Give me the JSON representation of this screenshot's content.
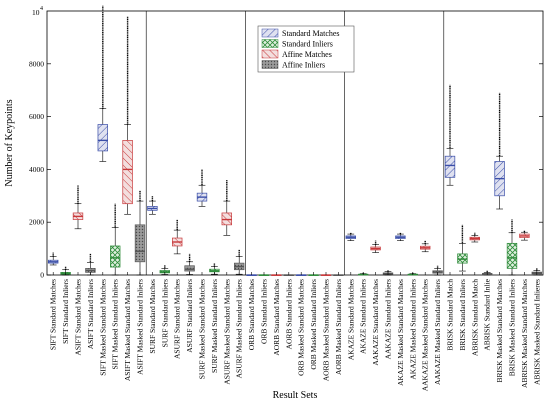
{
  "chart_data": {
    "type": "box",
    "title": "",
    "xlabel": "Result Sets",
    "ylabel": "Number of Keypoints",
    "exponent_label": "10",
    "exponent_power": "4",
    "ylim": [
      0,
      10000
    ],
    "yticks": [
      0,
      2000,
      4000,
      6000,
      8000
    ],
    "ytick_labels": [
      "0",
      "2000",
      "4000",
      "6000",
      "8000"
    ],
    "grid": false,
    "legend_position": "top-center",
    "legend": [
      {
        "label": "Standard Matches",
        "style": "standard-matches",
        "color": "#3a4ea8"
      },
      {
        "label": "Standard Inliers",
        "style": "standard-inliers",
        "color": "#2e8b3a"
      },
      {
        "label": "Affine Matches",
        "style": "affine-matches",
        "color": "#c8383a"
      },
      {
        "label": "Affine Inliers",
        "style": "affine-inliers",
        "color": "#555555"
      }
    ],
    "separators_after": [
      7,
      15,
      23,
      31
    ],
    "boxes": [
      {
        "label": "SIFT Standard Matches",
        "style": "standard-matches",
        "q1": 450,
        "median": 500,
        "q3": 560,
        "whisker_low": 380,
        "whisker_high": 700,
        "outlier_max": 850
      },
      {
        "label": "SIFT Standard Inliers",
        "style": "standard-inliers",
        "q1": 30,
        "median": 60,
        "q3": 100,
        "whisker_low": 0,
        "whisker_high": 200,
        "outlier_max": 320
      },
      {
        "label": "ASIFT Standard Matches",
        "style": "affine-matches",
        "q1": 2100,
        "median": 2220,
        "q3": 2350,
        "whisker_low": 1750,
        "whisker_high": 2700,
        "outlier_max": 3400
      },
      {
        "label": "ASIFT Standard Inliers",
        "style": "affine-inliers",
        "q1": 100,
        "median": 170,
        "q3": 250,
        "whisker_low": 0,
        "whisker_high": 480,
        "outlier_max": 820
      },
      {
        "label": "SIFT Masked Standard Matches",
        "style": "standard-matches",
        "q1": 4700,
        "median": 5100,
        "q3": 5700,
        "whisker_low": 4300,
        "whisker_high": 6300,
        "outlier_max": 10200
      },
      {
        "label": "SIFT Masked Standard Inliers",
        "style": "standard-inliers",
        "q1": 300,
        "median": 650,
        "q3": 1100,
        "whisker_low": 0,
        "whisker_high": 1800,
        "outlier_max": 2700
      },
      {
        "label": "ASIFT Masked Standard Matches",
        "style": "affine-matches",
        "q1": 2700,
        "median": 4000,
        "q3": 5100,
        "whisker_low": 2300,
        "whisker_high": 5700,
        "outlier_max": 9800
      },
      {
        "label": "ASIFT Masked Standard Inliers",
        "style": "affine-inliers",
        "q1": 500,
        "median": 900,
        "q3": 1900,
        "whisker_low": 0,
        "whisker_high": 2800,
        "outlier_max": 3200
      },
      {
        "label": "SURF Standard Matches",
        "style": "standard-matches",
        "q1": 2450,
        "median": 2520,
        "q3": 2600,
        "whisker_low": 2300,
        "whisker_high": 2800,
        "outlier_max": 3000
      },
      {
        "label": "SURF Standard Inliers",
        "style": "standard-inliers",
        "q1": 80,
        "median": 120,
        "q3": 170,
        "whisker_low": 20,
        "whisker_high": 250,
        "outlier_max": 380
      },
      {
        "label": "ASURF Standard Matches",
        "style": "affine-matches",
        "q1": 1100,
        "median": 1250,
        "q3": 1400,
        "whisker_low": 800,
        "whisker_high": 1700,
        "outlier_max": 2100
      },
      {
        "label": "ASURF Standard Inliers",
        "style": "affine-inliers",
        "q1": 150,
        "median": 220,
        "q3": 350,
        "whisker_low": 20,
        "whisker_high": 500,
        "outlier_max": 800
      },
      {
        "label": "SURF Masked Standard Matches",
        "style": "standard-matches",
        "q1": 2800,
        "median": 2950,
        "q3": 3100,
        "whisker_low": 2600,
        "whisker_high": 3400,
        "outlier_max": 4000
      },
      {
        "label": "SURF Masked Standard Inliers",
        "style": "standard-inliers",
        "q1": 120,
        "median": 160,
        "q3": 220,
        "whisker_low": 30,
        "whisker_high": 320,
        "outlier_max": 450
      },
      {
        "label": "ASURF Masked Standard Matches",
        "style": "affine-matches",
        "q1": 1900,
        "median": 2100,
        "q3": 2350,
        "whisker_low": 1500,
        "whisker_high": 2800,
        "outlier_max": 3600
      },
      {
        "label": "ASURF Masked Standard Inliers",
        "style": "affine-inliers",
        "q1": 200,
        "median": 320,
        "q3": 450,
        "whisker_low": 30,
        "whisker_high": 700,
        "outlier_max": 950
      },
      {
        "label": "ORB Standard Matches",
        "style": "standard-matches",
        "q1": 0,
        "median": 0,
        "q3": 0,
        "whisker_low": 0,
        "whisker_high": 0,
        "outlier_max": 0
      },
      {
        "label": "ORB Standard Inliers",
        "style": "standard-inliers",
        "q1": 0,
        "median": 0,
        "q3": 0,
        "whisker_low": 0,
        "whisker_high": 0,
        "outlier_max": 0
      },
      {
        "label": "AORB Standard Matches",
        "style": "affine-matches",
        "q1": 0,
        "median": 0,
        "q3": 0,
        "whisker_low": 0,
        "whisker_high": 0,
        "outlier_max": 0
      },
      {
        "label": "AORB Standard Inliers",
        "style": "affine-inliers",
        "q1": 0,
        "median": 0,
        "q3": 0,
        "whisker_low": 0,
        "whisker_high": 0,
        "outlier_max": 0
      },
      {
        "label": "ORB Masked Standard Matches",
        "style": "standard-matches",
        "q1": 0,
        "median": 0,
        "q3": 0,
        "whisker_low": 0,
        "whisker_high": 0,
        "outlier_max": 0
      },
      {
        "label": "ORB Masked Standard Inliers",
        "style": "standard-inliers",
        "q1": 0,
        "median": 0,
        "q3": 0,
        "whisker_low": 0,
        "whisker_high": 0,
        "outlier_max": 0
      },
      {
        "label": "AORB Masked Standard Matches",
        "style": "affine-matches",
        "q1": 0,
        "median": 0,
        "q3": 0,
        "whisker_low": 0,
        "whisker_high": 0,
        "outlier_max": 0
      },
      {
        "label": "AORB Masked Standard Inliers",
        "style": "affine-inliers",
        "q1": 0,
        "median": 0,
        "q3": 0,
        "whisker_low": 0,
        "whisker_high": 0,
        "outlier_max": 0
      },
      {
        "label": "AKAZE Standard Matches",
        "style": "standard-matches",
        "q1": 1380,
        "median": 1430,
        "q3": 1480,
        "whisker_low": 1300,
        "whisker_high": 1550,
        "outlier_max": 1600
      },
      {
        "label": "AKAZE Standard Inliers",
        "style": "standard-inliers",
        "q1": 5,
        "median": 15,
        "q3": 30,
        "whisker_low": 0,
        "whisker_high": 50,
        "outlier_max": 80
      },
      {
        "label": "AAKAZE Standard Matches",
        "style": "affine-matches",
        "q1": 950,
        "median": 1000,
        "q3": 1060,
        "whisker_low": 850,
        "whisker_high": 1150,
        "outlier_max": 1300
      },
      {
        "label": "AAKAZE Standard Inliers",
        "style": "affine-inliers",
        "q1": 30,
        "median": 50,
        "q3": 80,
        "whisker_low": 0,
        "whisker_high": 130,
        "outlier_max": 200
      },
      {
        "label": "AKAZE Masked Standard Matches",
        "style": "standard-matches",
        "q1": 1380,
        "median": 1430,
        "q3": 1480,
        "whisker_low": 1300,
        "whisker_high": 1550,
        "outlier_max": 1600
      },
      {
        "label": "AKAZE Masked Standard Inliers",
        "style": "standard-inliers",
        "q1": 5,
        "median": 15,
        "q3": 30,
        "whisker_low": 0,
        "whisker_high": 50,
        "outlier_max": 80
      },
      {
        "label": "AAKAZE Masked Standard Matches",
        "style": "affine-matches",
        "q1": 980,
        "median": 1030,
        "q3": 1090,
        "whisker_low": 880,
        "whisker_high": 1180,
        "outlier_max": 1300
      },
      {
        "label": "AAKAZE Masked Standard Inliers",
        "style": "affine-inliers",
        "q1": 70,
        "median": 110,
        "q3": 160,
        "whisker_low": 0,
        "whisker_high": 250,
        "outlier_max": 350
      },
      {
        "label": "BRISK Standard Match",
        "style": "standard-matches",
        "q1": 3700,
        "median": 4150,
        "q3": 4500,
        "whisker_low": 3400,
        "whisker_high": 4800,
        "outlier_max": 7200
      },
      {
        "label": "BRISK Standard Inliers",
        "style": "standard-inliers",
        "q1": 450,
        "median": 600,
        "q3": 800,
        "whisker_low": 150,
        "whisker_high": 1200,
        "outlier_max": 1900
      },
      {
        "label": "ABRISK Standard Match",
        "style": "affine-matches",
        "q1": 1330,
        "median": 1380,
        "q3": 1430,
        "whisker_low": 1250,
        "whisker_high": 1500,
        "outlier_max": 1600
      },
      {
        "label": "ABRISK Standard Inlie",
        "style": "affine-inliers",
        "q1": 10,
        "median": 30,
        "q3": 60,
        "whisker_low": 0,
        "whisker_high": 100,
        "outlier_max": 180
      },
      {
        "label": "BRISK Masked Standard Matches",
        "style": "standard-matches",
        "q1": 3000,
        "median": 3650,
        "q3": 4300,
        "whisker_low": 2500,
        "whisker_high": 4500,
        "outlier_max": 6900
      },
      {
        "label": "BRISK Masked Standard Inliers",
        "style": "standard-inliers",
        "q1": 250,
        "median": 650,
        "q3": 1200,
        "whisker_low": 0,
        "whisker_high": 1600,
        "outlier_max": 2100
      },
      {
        "label": "ABRISK Masked Standard Matches",
        "style": "affine-matches",
        "q1": 1420,
        "median": 1480,
        "q3": 1550,
        "whisker_low": 1320,
        "whisker_high": 1620,
        "outlier_max": 1700
      },
      {
        "label": "ABRISK Masked Standard Inlieres",
        "style": "affine-inliers",
        "q1": 40,
        "median": 70,
        "q3": 110,
        "whisker_low": 0,
        "whisker_high": 170,
        "outlier_max": 260
      }
    ]
  }
}
